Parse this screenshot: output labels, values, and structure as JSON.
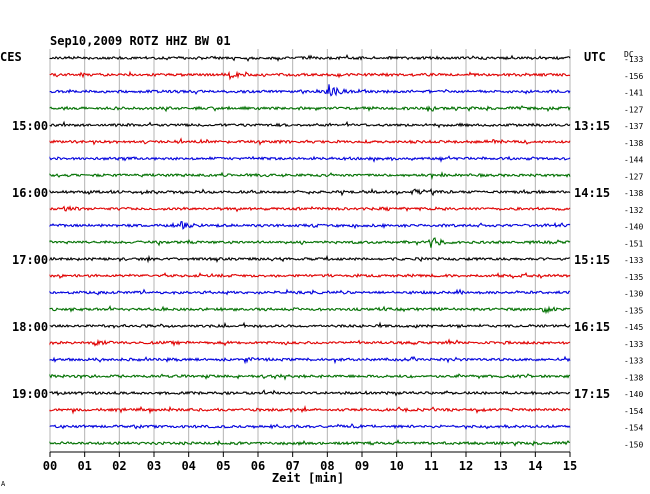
{
  "chart_data": {
    "type": "line",
    "title": "Sep10,2009   ROTZ HHZ BW 01",
    "left_zone_label": "CES",
    "right_zone_label": "UTC",
    "dc_header": "DC",
    "xlabel": "Zeit [min]",
    "x_ticks": [
      "00",
      "01",
      "02",
      "03",
      "04",
      "05",
      "06",
      "07",
      "08",
      "09",
      "10",
      "11",
      "12",
      "13",
      "14",
      "15"
    ],
    "xlim": [
      0,
      15
    ],
    "left_hour_labels": [
      "15:00",
      "16:00",
      "17:00",
      "18:00",
      "19:00"
    ],
    "right_hour_labels": [
      "13:15",
      "14:15",
      "15:15",
      "16:15",
      "17:15"
    ],
    "trace_colors": [
      "#000000",
      "#e00000",
      "#0000dd",
      "#007000"
    ],
    "dc_offsets": [
      "-133",
      "-156",
      "-141",
      "-127",
      "-137",
      "-138",
      "-144",
      "-127",
      "-138",
      "-132",
      "-140",
      "-151",
      "-133",
      "-135",
      "-130",
      "-135",
      "-145",
      "-133",
      "-133",
      "-138",
      "-140",
      "-154",
      "-154",
      "-150"
    ],
    "events": [
      {
        "trace": 2,
        "minute": 8.0,
        "amplitude": 9
      },
      {
        "trace": 1,
        "minute": 5.2,
        "amplitude": 3
      },
      {
        "trace": 3,
        "minute": 10.9,
        "amplitude": 3
      },
      {
        "trace": 8,
        "minute": 10.5,
        "amplitude": 3
      },
      {
        "trace": 9,
        "minute": 0.4,
        "amplitude": 3
      },
      {
        "trace": 10,
        "minute": 3.8,
        "amplitude": 4
      },
      {
        "trace": 11,
        "minute": 11.0,
        "amplitude": 6
      },
      {
        "trace": 15,
        "minute": 14.2,
        "amplitude": 4
      },
      {
        "trace": 17,
        "minute": 1.3,
        "amplitude": 3
      },
      {
        "trace": 18,
        "minute": 5.6,
        "amplitude": 2
      }
    ]
  },
  "corner_mark": "A"
}
